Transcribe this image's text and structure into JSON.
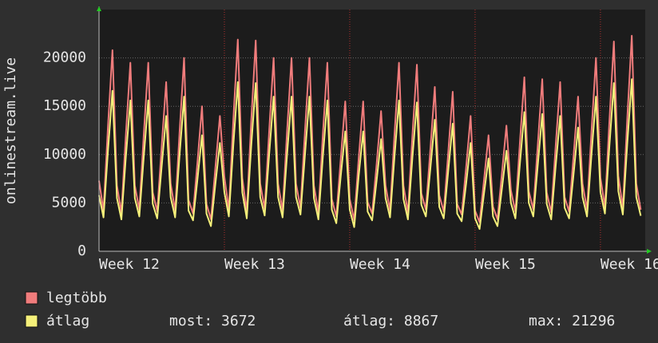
{
  "chart_data": {
    "type": "line",
    "ylabel": "onlinestream.live",
    "x": [
      0,
      1,
      2,
      3,
      4,
      5,
      6,
      7,
      8,
      9,
      10,
      11,
      12,
      13,
      14,
      15,
      16,
      17,
      18,
      19,
      20,
      21,
      22,
      23,
      24,
      25,
      26,
      27,
      28,
      29,
      30,
      31,
      32,
      33,
      34,
      35,
      36,
      37,
      38,
      39,
      40,
      41,
      42,
      43,
      44,
      45,
      46,
      47,
      48,
      49,
      50,
      51,
      52,
      53,
      54,
      55,
      56,
      57,
      58,
      59,
      60,
      61,
      62,
      63,
      64,
      65,
      66,
      67,
      68,
      69,
      70,
      71,
      72,
      73,
      74,
      75,
      76,
      77,
      78,
      79,
      80,
      81,
      82,
      83,
      84,
      85,
      86,
      87,
      88,
      89,
      90,
      91,
      92,
      93,
      94,
      95,
      96,
      97,
      98,
      99,
      100,
      101,
      102,
      103,
      104,
      105,
      106,
      107,
      108,
      109,
      110,
      111,
      112,
      113,
      114,
      115,
      116,
      117,
      118,
      119,
      120,
      121
    ],
    "xlim": [
      0,
      122
    ],
    "xticks": [
      {
        "value": 0,
        "label": "Week 12"
      },
      {
        "value": 28,
        "label": "Week 13"
      },
      {
        "value": 56,
        "label": "Week 14"
      },
      {
        "value": 84,
        "label": "Week 15"
      },
      {
        "value": 112,
        "label": "Week 16"
      }
    ],
    "ylim": [
      0,
      25000
    ],
    "yticks": [
      0,
      5000,
      10000,
      15000,
      20000
    ],
    "grid": true,
    "series": [
      {
        "name": "legtöbb",
        "color": "#f07c7c",
        "values": [
          7300,
          4200,
          12900,
          20800,
          6800,
          4000,
          12100,
          19500,
          6800,
          4300,
          12100,
          19500,
          6100,
          4100,
          10900,
          17500,
          7000,
          4200,
          12400,
          20000,
          5300,
          3900,
          9300,
          15000,
          4900,
          3300,
          8700,
          14000,
          7700,
          4300,
          13600,
          21900,
          7600,
          4100,
          13500,
          21800,
          7000,
          4400,
          12400,
          20000,
          7000,
          4200,
          12400,
          20000,
          7000,
          4500,
          12400,
          20000,
          6800,
          4000,
          12100,
          19500,
          5400,
          3600,
          9600,
          15500,
          5400,
          3200,
          9600,
          15500,
          5100,
          3900,
          9000,
          14500,
          6800,
          4200,
          12100,
          19500,
          6800,
          4000,
          12000,
          19300,
          6000,
          4300,
          10500,
          17000,
          5800,
          4100,
          10200,
          16500,
          4900,
          3800,
          8700,
          14000,
          4200,
          3000,
          7400,
          12000,
          4600,
          3300,
          8100,
          13000,
          6300,
          4100,
          11200,
          18000,
          6200,
          4300,
          11000,
          17800,
          6100,
          4000,
          10900,
          17500,
          5600,
          4100,
          9900,
          16000,
          7000,
          4300,
          12400,
          20000,
          7600,
          4600,
          13500,
          21700,
          7800,
          4500,
          13800,
          22300,
          7000,
          4300
        ]
      },
      {
        "name": "átlag",
        "color": "#f5f07a",
        "values": [
          5800,
          3500,
          10400,
          16600,
          5500,
          3300,
          9800,
          15600,
          5500,
          3600,
          9800,
          15600,
          4900,
          3400,
          8800,
          14000,
          5600,
          3500,
          10000,
          16000,
          4200,
          3200,
          7500,
          12000,
          3900,
          2600,
          7000,
          11200,
          6100,
          3600,
          11000,
          17500,
          6100,
          3400,
          10900,
          17400,
          5600,
          3700,
          10000,
          16000,
          5600,
          3500,
          10000,
          16000,
          5600,
          3800,
          10000,
          16000,
          5500,
          3300,
          9800,
          15600,
          4300,
          2900,
          7800,
          12400,
          4300,
          2500,
          7800,
          12400,
          4100,
          3200,
          7300,
          11600,
          5500,
          3500,
          9800,
          15600,
          5400,
          3300,
          9700,
          15400,
          4800,
          3600,
          8500,
          13600,
          4600,
          3400,
          8300,
          13200,
          3900,
          3100,
          7000,
          11200,
          3400,
          2300,
          6000,
          9600,
          3600,
          2600,
          6500,
          10400,
          5000,
          3400,
          9000,
          14400,
          5000,
          3600,
          8900,
          14200,
          4900,
          3300,
          8800,
          14000,
          4500,
          3400,
          8000,
          12800,
          5600,
          3600,
          10000,
          16000,
          6100,
          3900,
          10900,
          17400,
          6200,
          3800,
          11200,
          17800,
          5600,
          3672
        ]
      }
    ],
    "legend_stats": [
      "most: 3672",
      "átlag: 8867",
      "max: 21296"
    ]
  }
}
